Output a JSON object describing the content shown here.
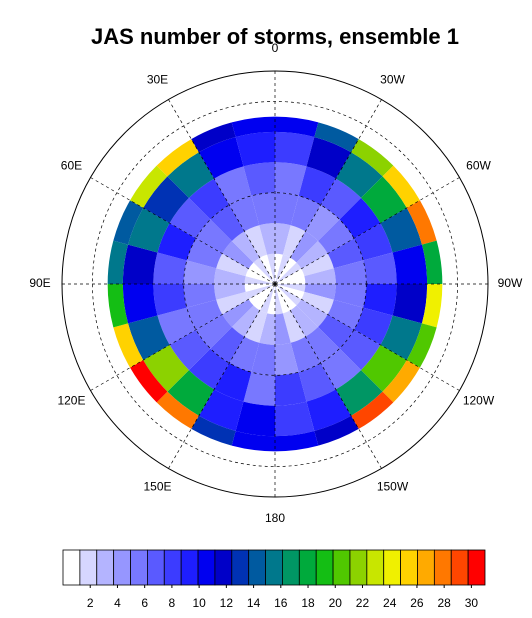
{
  "chart_data": {
    "type": "polar-grid",
    "title": "JAS number of storms, ensemble 1",
    "rlim": [
      90,
      20
    ],
    "lat_edges": [
      90,
      80,
      70,
      60,
      50,
      40,
      35
    ],
    "lat_circles": [
      60,
      30
    ],
    "lon_labels": [
      0,
      {
        "value": -30,
        "label": "30W"
      },
      {
        "value": -60,
        "label": "60W"
      },
      {
        "value": -90,
        "label": "90W"
      },
      {
        "value": -120,
        "label": "120W"
      },
      {
        "value": -150,
        "label": "150W"
      },
      180,
      {
        "value": 150,
        "label": "150E"
      },
      {
        "value": 120,
        "label": "120E"
      },
      {
        "value": 90,
        "label": "90E"
      },
      {
        "value": 60,
        "label": "60E"
      },
      {
        "value": 30,
        "label": "30E"
      }
    ],
    "values": [
      [
        1,
        2,
        1,
        2,
        1,
        1,
        2,
        1,
        2,
        1,
        1,
        2,
        1,
        2,
        1,
        1,
        2,
        1,
        2,
        1,
        1,
        2,
        1,
        2
      ],
      [
        3,
        2,
        4,
        3,
        2,
        3,
        4,
        2,
        3,
        3,
        2,
        4,
        3,
        2,
        3,
        4,
        2,
        3,
        3,
        2,
        4,
        3,
        2,
        3
      ],
      [
        5,
        6,
        4,
        5,
        7,
        6,
        5,
        6,
        7,
        5,
        6,
        4,
        5,
        6,
        7,
        5,
        6,
        5,
        4,
        6,
        5,
        7,
        6,
        5
      ],
      [
        6,
        8,
        7,
        9,
        8,
        7,
        9,
        8,
        7,
        6,
        7,
        8,
        6,
        9,
        8,
        7,
        6,
        8,
        7,
        9,
        7,
        8,
        6,
        7
      ],
      [
        8,
        12,
        15,
        18,
        14,
        10,
        12,
        16,
        20,
        17,
        9,
        8,
        10,
        9,
        18,
        22,
        14,
        11,
        12,
        16,
        13,
        15,
        10,
        9
      ],
      [
        10,
        14,
        22,
        26,
        28,
        18,
        24,
        20,
        27,
        29,
        12,
        10,
        11,
        13,
        28,
        30,
        25,
        19,
        16,
        14,
        23,
        26,
        12,
        11
      ]
    ],
    "colorbar": {
      "lim": [
        0,
        31
      ],
      "ticks": [
        2,
        4,
        6,
        8,
        10,
        12,
        14,
        16,
        18,
        20,
        22,
        24,
        26,
        28,
        30
      ],
      "colors": [
        "#ffffff",
        "#d6d6ff",
        "#b4b4ff",
        "#9696ff",
        "#7878ff",
        "#5a5aff",
        "#3c3cff",
        "#1e1eff",
        "#0000f0",
        "#0000c8",
        "#0032b4",
        "#005aa0",
        "#00788c",
        "#009664",
        "#00aa3c",
        "#14be14",
        "#50c800",
        "#8cd200",
        "#c8e600",
        "#f0f000",
        "#ffd200",
        "#ffaa00",
        "#ff7800",
        "#ff4600",
        "#ff0000"
      ]
    }
  }
}
